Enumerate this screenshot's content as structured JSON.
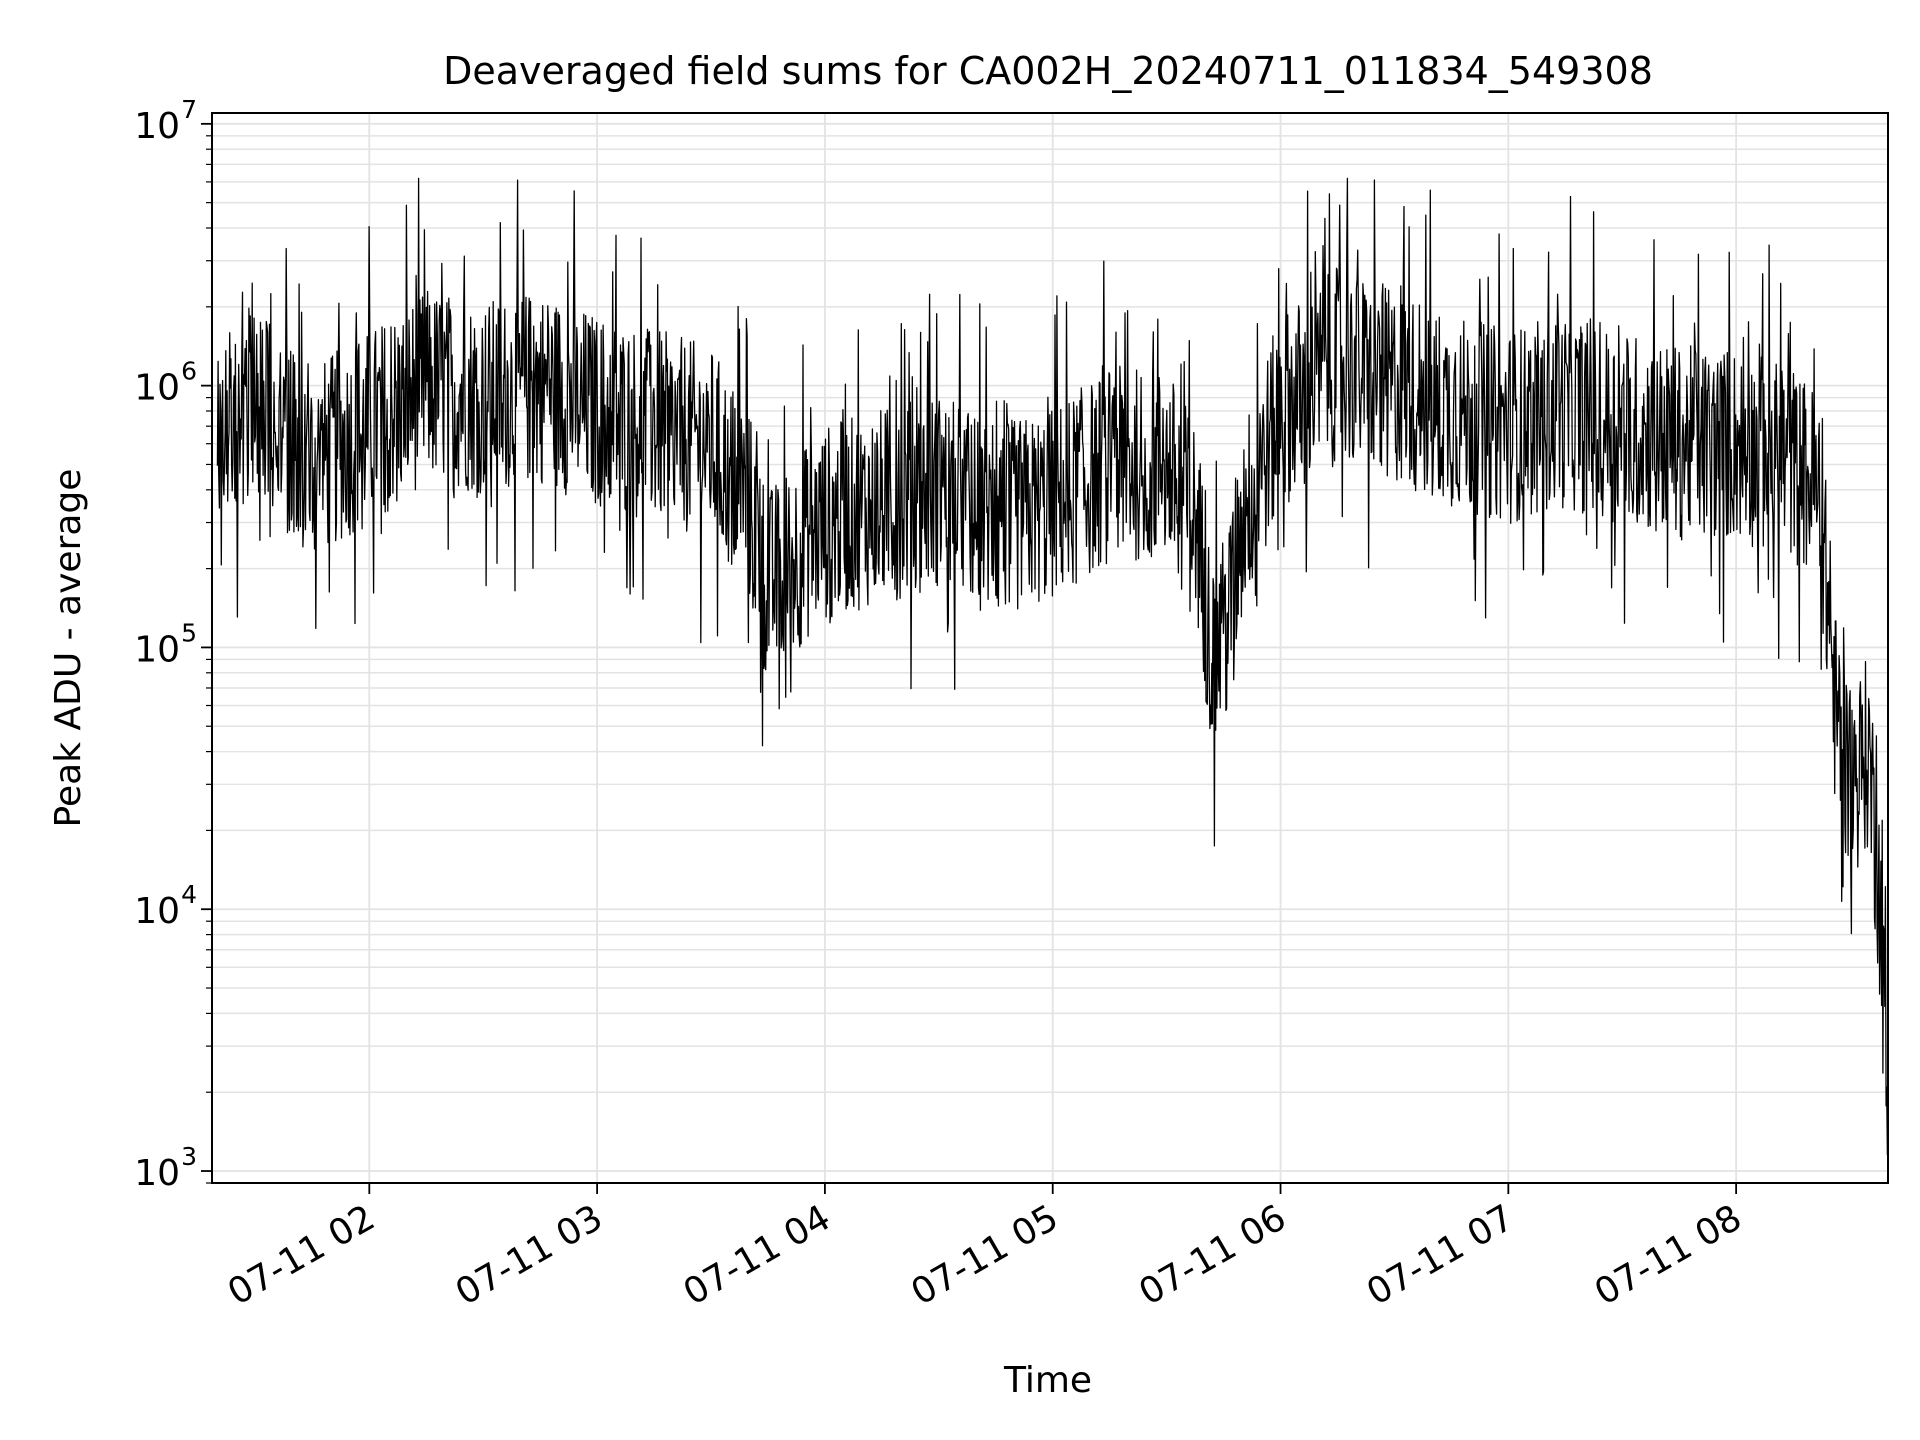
{
  "chart_data": {
    "type": "line",
    "title": "Deaveraged field sums for CA002H_20240711_011834_549308",
    "xlabel": "Time",
    "ylabel": "Peak ADU - average",
    "yscale": "log",
    "ylim": [
      900,
      11000000
    ],
    "xlim": [
      "2024-07-11 01:18:34",
      "2024-07-11 08:40:00"
    ],
    "x_ticks": [
      {
        "t": "2024-07-11 02:00",
        "label": "07-11 02"
      },
      {
        "t": "2024-07-11 03:00",
        "label": "07-11 03"
      },
      {
        "t": "2024-07-11 04:00",
        "label": "07-11 04"
      },
      {
        "t": "2024-07-11 05:00",
        "label": "07-11 05"
      },
      {
        "t": "2024-07-11 06:00",
        "label": "07-11 06"
      },
      {
        "t": "2024-07-11 07:00",
        "label": "07-11 07"
      },
      {
        "t": "2024-07-11 08:00",
        "label": "07-11 08"
      }
    ],
    "y_ticks": [
      {
        "value": 1000,
        "base": "10",
        "exp": "3"
      },
      {
        "value": 10000,
        "base": "10",
        "exp": "4"
      },
      {
        "value": 100000,
        "base": "10",
        "exp": "5"
      },
      {
        "value": 1000000,
        "base": "10",
        "exp": "6"
      },
      {
        "value": 10000000,
        "base": "10",
        "exp": "7"
      }
    ],
    "grid": true,
    "line_color": "#000000",
    "grid_color": "#e3e3e3",
    "series": [
      {
        "values": [
          {
            "t": "2024-07-11 01:20",
            "y": 600000
          },
          {
            "t": "2024-07-11 01:30",
            "y": 900000
          },
          {
            "t": "2024-07-11 01:45",
            "y": 500000
          },
          {
            "t": "2024-07-11 02:00",
            "y": 700000
          },
          {
            "t": "2024-07-11 02:15",
            "y": 1000000
          },
          {
            "t": "2024-07-11 02:30",
            "y": 900000
          },
          {
            "t": "2024-07-11 02:45",
            "y": 1000000
          },
          {
            "t": "2024-07-11 03:00",
            "y": 800000
          },
          {
            "t": "2024-07-11 03:15",
            "y": 700000
          },
          {
            "t": "2024-07-11 03:30",
            "y": 600000
          },
          {
            "t": "2024-07-11 03:40",
            "y": 350000
          },
          {
            "t": "2024-07-11 03:45",
            "y": 170000
          },
          {
            "t": "2024-07-11 04:00",
            "y": 300000
          },
          {
            "t": "2024-07-11 04:15",
            "y": 350000
          },
          {
            "t": "2024-07-11 04:30",
            "y": 400000
          },
          {
            "t": "2024-07-11 04:45",
            "y": 300000
          },
          {
            "t": "2024-07-11 05:00",
            "y": 350000
          },
          {
            "t": "2024-07-11 05:15",
            "y": 500000
          },
          {
            "t": "2024-07-11 05:30",
            "y": 500000
          },
          {
            "t": "2024-07-11 05:38",
            "y": 300000
          },
          {
            "t": "2024-07-11 05:42",
            "y": 90000
          },
          {
            "t": "2024-07-11 05:46",
            "y": 120000
          },
          {
            "t": "2024-07-11 05:50",
            "y": 300000
          },
          {
            "t": "2024-07-11 06:00",
            "y": 800000
          },
          {
            "t": "2024-07-11 06:15",
            "y": 1200000
          },
          {
            "t": "2024-07-11 06:30",
            "y": 1000000
          },
          {
            "t": "2024-07-11 06:45",
            "y": 800000
          },
          {
            "t": "2024-07-11 07:00",
            "y": 700000
          },
          {
            "t": "2024-07-11 07:15",
            "y": 800000
          },
          {
            "t": "2024-07-11 07:30",
            "y": 700000
          },
          {
            "t": "2024-07-11 07:45",
            "y": 600000
          },
          {
            "t": "2024-07-11 08:00",
            "y": 600000
          },
          {
            "t": "2024-07-11 08:15",
            "y": 500000
          },
          {
            "t": "2024-07-11 08:22",
            "y": 400000
          },
          {
            "t": "2024-07-11 08:26",
            "y": 60000
          },
          {
            "t": "2024-07-11 08:30",
            "y": 30000
          },
          {
            "t": "2024-07-11 08:35",
            "y": 40000
          },
          {
            "t": "2024-07-11 08:38",
            "y": 10000
          },
          {
            "t": "2024-07-11 08:40",
            "y": 1500
          }
        ]
      }
    ]
  }
}
